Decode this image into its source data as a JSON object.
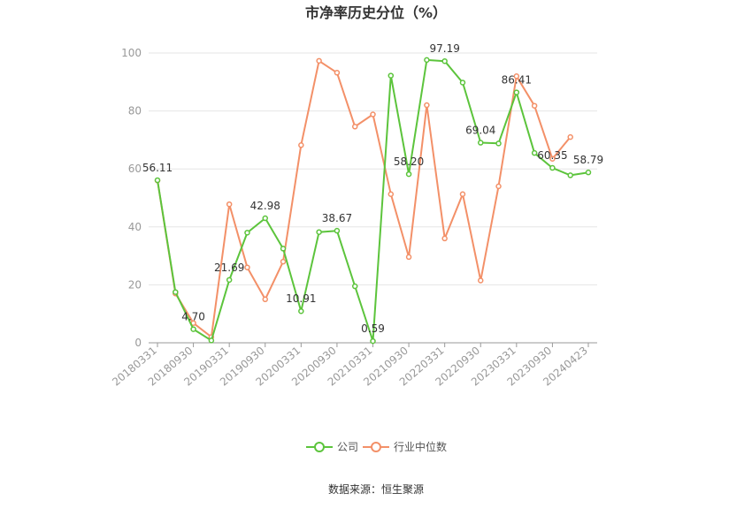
{
  "chart_data": {
    "type": "line",
    "title": "市净率历史分位（%）",
    "xlabel": "",
    "ylabel": "",
    "ylim": [
      0,
      100
    ],
    "yticks": [
      "0",
      "20",
      "40",
      "60",
      "80",
      "100"
    ],
    "categories": [
      "20180331",
      "20180630",
      "20180930",
      "20181231",
      "20190331",
      "20190630",
      "20190930",
      "20191231",
      "20200331",
      "20200630",
      "20200930",
      "20201231",
      "20210331",
      "20210630",
      "20210930",
      "20211231",
      "20220331",
      "20220630",
      "20220930",
      "20221231",
      "20230331",
      "20230630",
      "20230930",
      "20231231",
      "20240423"
    ],
    "x_tick_labels": [
      "20180331",
      "20180930",
      "20190331",
      "20190930",
      "20200331",
      "20200930",
      "20210331",
      "20210930",
      "20220331",
      "20220930",
      "20230331",
      "20230930",
      "20240423"
    ],
    "series": [
      {
        "name": "公司",
        "color": "#5cc43c",
        "values": [
          56.11,
          17.5,
          4.7,
          0.8,
          21.69,
          38.0,
          42.98,
          32.5,
          10.91,
          38.2,
          38.67,
          19.5,
          0.59,
          92.2,
          58.2,
          97.6,
          97.19,
          89.8,
          69.04,
          68.8,
          86.41,
          65.5,
          60.35,
          57.8,
          58.79
        ]
      },
      {
        "name": "行业中位数",
        "color": "#f39068",
        "values": [
          56.0,
          17.0,
          6.8,
          2.0,
          47.8,
          26.0,
          15.0,
          28.0,
          68.2,
          97.3,
          93.2,
          74.6,
          78.8,
          51.3,
          29.6,
          82.0,
          36.0,
          51.3,
          21.5,
          54.0,
          92.0,
          81.8,
          63.5,
          71.0,
          null
        ]
      }
    ],
    "data_labels": [
      {
        "text": "56.11",
        "index": 0,
        "value": 56.11
      },
      {
        "text": "4.70",
        "index": 2,
        "value": 4.7
      },
      {
        "text": "21.69",
        "index": 4,
        "value": 21.69
      },
      {
        "text": "42.98",
        "index": 6,
        "value": 42.98
      },
      {
        "text": "10.91",
        "index": 8,
        "value": 10.91
      },
      {
        "text": "38.67",
        "index": 10,
        "value": 38.67
      },
      {
        "text": "0.59",
        "index": 12,
        "value": 0.59
      },
      {
        "text": "58.20",
        "index": 14,
        "value": 58.2
      },
      {
        "text": "97.19",
        "index": 16,
        "value": 97.19
      },
      {
        "text": "69.04",
        "index": 18,
        "value": 69.04
      },
      {
        "text": "86.41",
        "index": 20,
        "value": 86.41
      },
      {
        "text": "60.35",
        "index": 22,
        "value": 60.35
      },
      {
        "text": "58.79",
        "index": 24,
        "value": 58.79
      }
    ],
    "grid": true,
    "legend_position": "bottom"
  },
  "footer": {
    "source": "数据来源：恒生聚源"
  }
}
